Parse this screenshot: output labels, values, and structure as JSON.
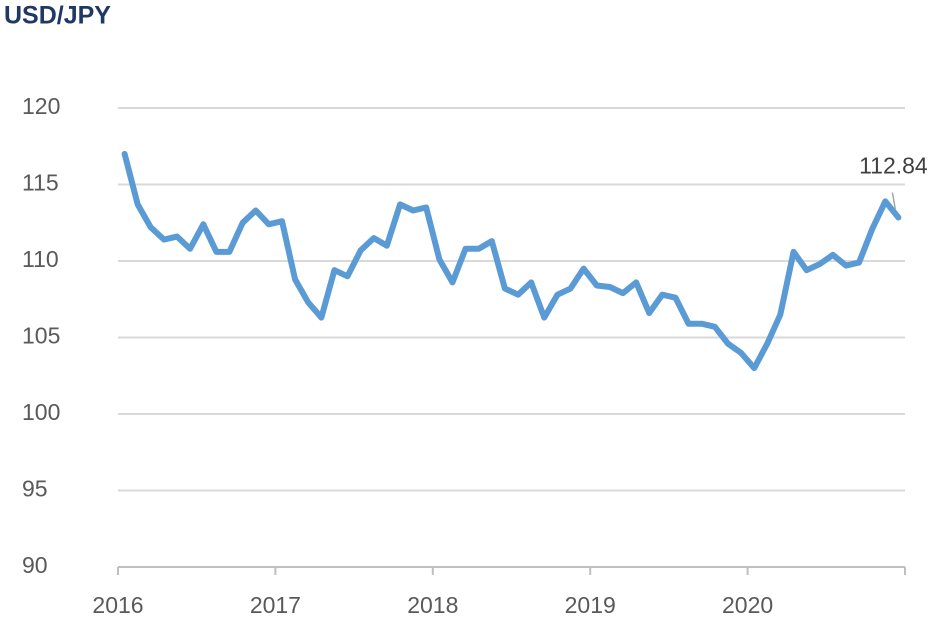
{
  "chart_data": {
    "type": "line",
    "title": "USD/JPY",
    "x": [
      2016.042,
      2016.125,
      2016.208,
      2016.292,
      2016.375,
      2016.458,
      2016.542,
      2016.625,
      2016.708,
      2016.792,
      2016.875,
      2016.958,
      2017.042,
      2017.125,
      2017.208,
      2017.292,
      2017.375,
      2017.458,
      2017.542,
      2017.625,
      2017.708,
      2017.792,
      2017.875,
      2017.958,
      2018.042,
      2018.125,
      2018.208,
      2018.292,
      2018.375,
      2018.458,
      2018.542,
      2018.625,
      2018.708,
      2018.792,
      2018.875,
      2018.958,
      2019.042,
      2019.125,
      2019.208,
      2019.292,
      2019.375,
      2019.458,
      2019.542,
      2019.625,
      2019.708,
      2019.792,
      2019.875,
      2019.958,
      2020.042,
      2020.125,
      2020.208,
      2020.292,
      2020.375,
      2020.458,
      2020.542,
      2020.625,
      2020.708,
      2020.792,
      2020.875,
      2020.958
    ],
    "series": [
      {
        "name": "USD/JPY",
        "color": "#5b9bd5",
        "values": [
          117.0,
          113.7,
          112.2,
          111.4,
          111.6,
          110.8,
          112.4,
          110.6,
          110.6,
          112.5,
          113.3,
          112.4,
          112.6,
          108.8,
          107.3,
          106.3,
          109.4,
          109.0,
          110.7,
          111.5,
          111.0,
          113.7,
          113.3,
          113.5,
          110.1,
          108.6,
          110.8,
          110.8,
          111.3,
          108.2,
          107.8,
          108.6,
          106.3,
          107.8,
          108.2,
          109.5,
          108.4,
          108.3,
          107.9,
          108.6,
          106.6,
          107.8,
          107.6,
          105.9,
          105.9,
          105.7,
          104.6,
          104.0,
          103.0,
          104.6,
          106.5,
          110.6,
          109.4,
          109.8,
          110.4,
          109.7,
          109.9,
          112.1,
          113.9,
          112.84
        ],
        "value_labels": [
          null,
          null,
          null,
          null,
          null,
          null,
          null,
          null,
          null,
          null,
          null,
          null,
          null,
          null,
          null,
          null,
          null,
          null,
          null,
          null,
          null,
          null,
          null,
          null,
          null,
          null,
          null,
          null,
          null,
          null,
          null,
          null,
          null,
          null,
          null,
          null,
          null,
          null,
          null,
          null,
          null,
          null,
          null,
          null,
          null,
          null,
          null,
          null,
          null,
          null,
          null,
          null,
          null,
          null,
          null,
          null,
          null,
          null,
          null,
          "112.84"
        ]
      }
    ],
    "xlim": [
      2016,
      2021
    ],
    "xticks": [
      2016,
      2017,
      2018,
      2019,
      2020
    ],
    "ylim": [
      90,
      120
    ],
    "yticks": [
      90,
      95,
      100,
      105,
      110,
      115,
      120
    ],
    "grid": true
  }
}
